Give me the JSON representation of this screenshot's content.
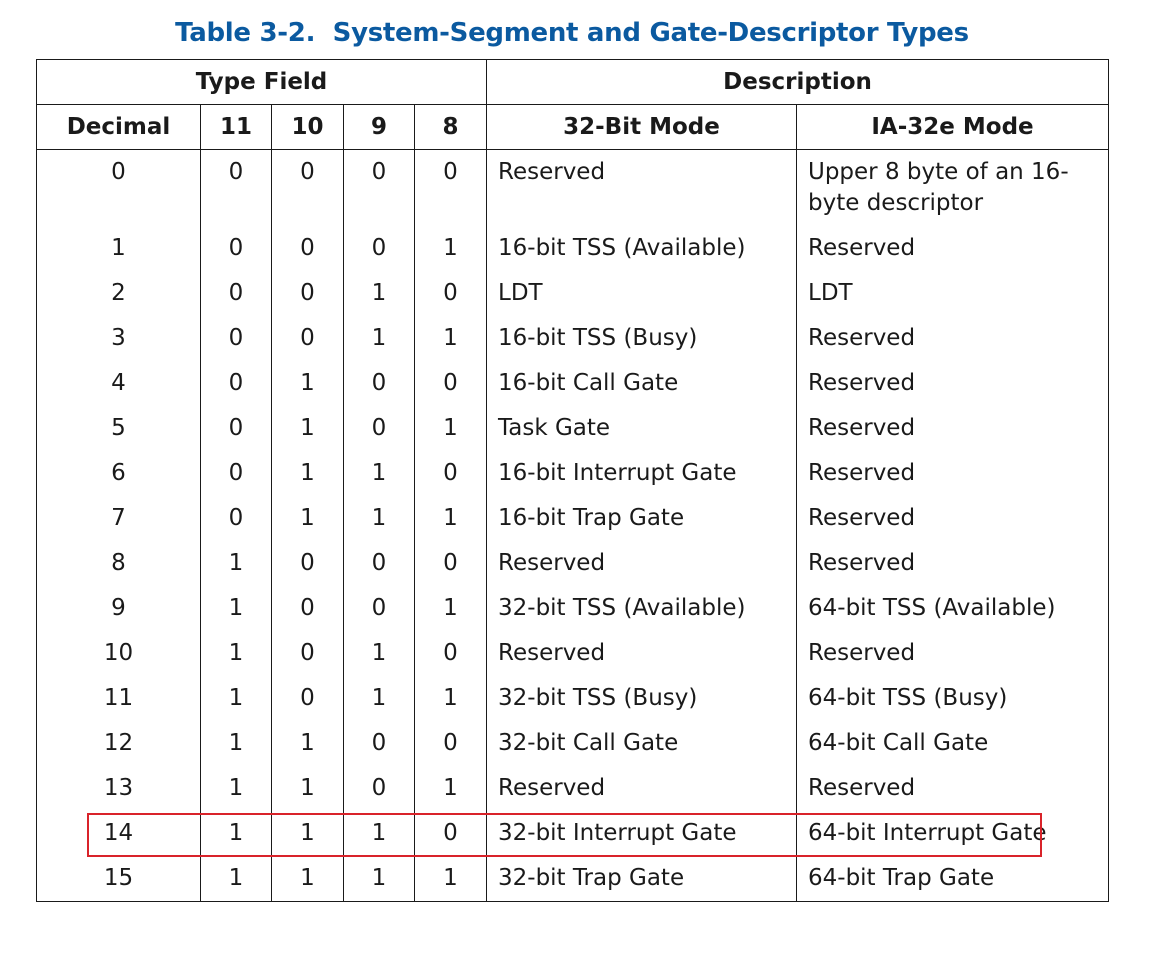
{
  "caption": "Table 3-2.  System-Segment and Gate-Descriptor Types",
  "headers": {
    "type_field": "Type Field",
    "description": "Description",
    "decimal": "Decimal",
    "bit11": "11",
    "bit10": "10",
    "bit9": "9",
    "bit8": "8",
    "mode32": "32-Bit Mode",
    "mode64": "IA-32e Mode"
  },
  "rows": [
    {
      "dec": "0",
      "b11": "0",
      "b10": "0",
      "b9": "0",
      "b8": "0",
      "m32": "Reserved",
      "m64": "Upper 8 byte of an 16-byte descriptor"
    },
    {
      "dec": "1",
      "b11": "0",
      "b10": "0",
      "b9": "0",
      "b8": "1",
      "m32": "16-bit TSS (Available)",
      "m64": "Reserved"
    },
    {
      "dec": "2",
      "b11": "0",
      "b10": "0",
      "b9": "1",
      "b8": "0",
      "m32": "LDT",
      "m64": "LDT"
    },
    {
      "dec": "3",
      "b11": "0",
      "b10": "0",
      "b9": "1",
      "b8": "1",
      "m32": "16-bit TSS (Busy)",
      "m64": "Reserved"
    },
    {
      "dec": "4",
      "b11": "0",
      "b10": "1",
      "b9": "0",
      "b8": "0",
      "m32": "16-bit Call Gate",
      "m64": "Reserved"
    },
    {
      "dec": "5",
      "b11": "0",
      "b10": "1",
      "b9": "0",
      "b8": "1",
      "m32": "Task Gate",
      "m64": "Reserved"
    },
    {
      "dec": "6",
      "b11": "0",
      "b10": "1",
      "b9": "1",
      "b8": "0",
      "m32": "16-bit Interrupt Gate",
      "m64": "Reserved"
    },
    {
      "dec": "7",
      "b11": "0",
      "b10": "1",
      "b9": "1",
      "b8": "1",
      "m32": "16-bit Trap Gate",
      "m64": "Reserved"
    },
    {
      "dec": "8",
      "b11": "1",
      "b10": "0",
      "b9": "0",
      "b8": "0",
      "m32": "Reserved",
      "m64": "Reserved"
    },
    {
      "dec": "9",
      "b11": "1",
      "b10": "0",
      "b9": "0",
      "b8": "1",
      "m32": "32-bit TSS (Available)",
      "m64": "64-bit TSS (Available)"
    },
    {
      "dec": "10",
      "b11": "1",
      "b10": "0",
      "b9": "1",
      "b8": "0",
      "m32": "Reserved",
      "m64": "Reserved"
    },
    {
      "dec": "11",
      "b11": "1",
      "b10": "0",
      "b9": "1",
      "b8": "1",
      "m32": "32-bit TSS (Busy)",
      "m64": "64-bit TSS (Busy)"
    },
    {
      "dec": "12",
      "b11": "1",
      "b10": "1",
      "b9": "0",
      "b8": "0",
      "m32": "32-bit Call Gate",
      "m64": "64-bit Call Gate"
    },
    {
      "dec": "13",
      "b11": "1",
      "b10": "1",
      "b9": "0",
      "b8": "1",
      "m32": "Reserved",
      "m64": "Reserved"
    },
    {
      "dec": "14",
      "b11": "1",
      "b10": "1",
      "b9": "1",
      "b8": "0",
      "m32": "32-bit Interrupt Gate",
      "m64": "64-bit Interrupt Gate"
    },
    {
      "dec": "15",
      "b11": "1",
      "b10": "1",
      "b9": "1",
      "b8": "1",
      "m32": "32-bit Trap Gate",
      "m64": "64-bit Trap Gate"
    }
  ],
  "colors": {
    "caption": "#0b5aa0",
    "highlight": "#d9232a",
    "border": "#1a1a1a"
  }
}
